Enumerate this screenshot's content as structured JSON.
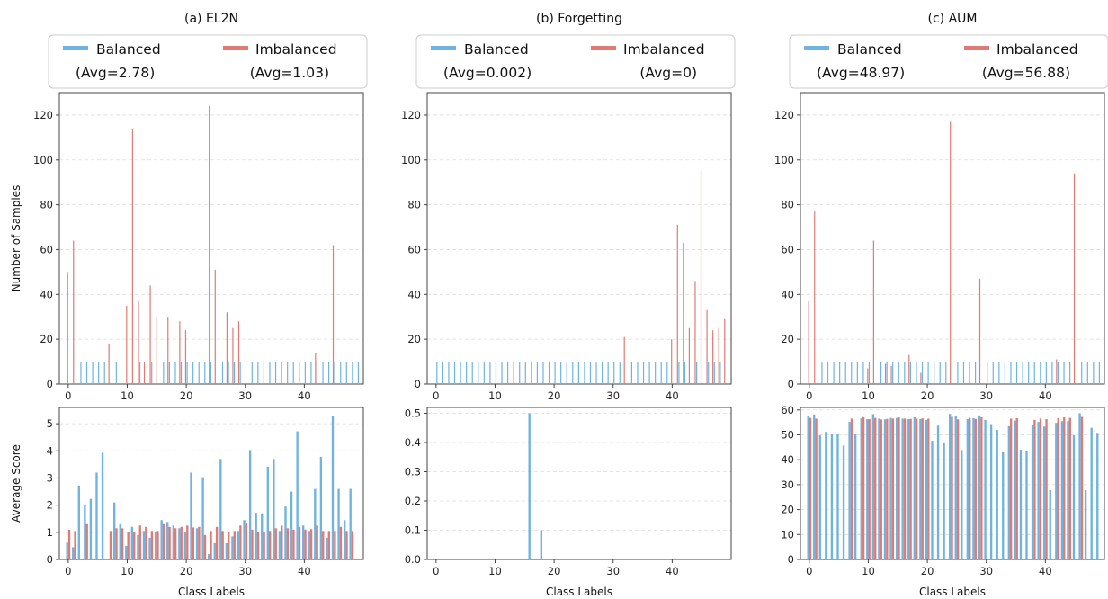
{
  "colors": {
    "balanced": "#6fb3e0",
    "imbalanced": "#e07b74",
    "grid": "#dddddd",
    "axis": "#444444"
  },
  "legend_labels": {
    "balanced": "Balanced",
    "imbalanced": "Imbalanced"
  },
  "axis_labels": {
    "top_ylabel": "Number of Samples",
    "bottom_ylabel": "Average Score",
    "xlabel": "Class Labels"
  },
  "chart_data": [
    {
      "type": "bar",
      "title": "(a) EL2N",
      "legend": {
        "balanced_avg": "(Avg=2.78)",
        "imbalanced_avg": "(Avg=1.03)"
      },
      "count_hist": {
        "ylim": [
          0,
          130
        ],
        "yticks": [
          0,
          20,
          40,
          60,
          80,
          100,
          120
        ],
        "xticks": [
          0,
          10,
          20,
          30,
          40
        ],
        "xlim": [
          -1.5,
          50
        ],
        "balanced": {
          "classes": [
            2,
            3,
            4,
            5,
            6,
            8,
            12,
            14,
            16,
            17,
            18,
            19,
            20,
            21,
            22,
            23,
            24,
            26,
            27,
            28,
            29,
            31,
            32,
            33,
            34,
            35,
            36,
            37,
            38,
            39,
            40,
            41,
            42,
            43,
            44,
            45,
            46,
            47,
            48,
            49
          ],
          "values": [
            10,
            10,
            10,
            10,
            10,
            10,
            10,
            10,
            10,
            10,
            10,
            10,
            10,
            10,
            10,
            10,
            10,
            10,
            10,
            10,
            10,
            10,
            10,
            10,
            10,
            10,
            10,
            10,
            10,
            10,
            10,
            10,
            10,
            10,
            10,
            10,
            10,
            10,
            10,
            10
          ]
        },
        "imbalanced": {
          "classes": [
            0,
            1,
            7,
            10,
            11,
            12,
            13,
            14,
            15,
            17,
            19,
            20,
            24,
            25,
            27,
            28,
            29,
            42,
            45
          ],
          "values": [
            50,
            64,
            18,
            35,
            114,
            37,
            10,
            44,
            30,
            30,
            28,
            24,
            124,
            51,
            32,
            25,
            28,
            14,
            62
          ]
        }
      },
      "score_bars": {
        "ylim": [
          0,
          5.6
        ],
        "yticks": [
          0,
          1,
          2,
          3,
          4,
          5
        ],
        "xticks": [
          0,
          10,
          20,
          30,
          40
        ],
        "xlim": [
          -1.5,
          50
        ],
        "balanced": [
          0.62,
          0.45,
          2.72,
          2.0,
          2.23,
          3.2,
          3.93,
          null,
          2.1,
          1.3,
          0.5,
          1.2,
          0.9,
          1.05,
          0.8,
          1.0,
          1.45,
          1.38,
          1.25,
          1.15,
          1.0,
          3.2,
          1.15,
          3.03,
          0.2,
          0.6,
          3.7,
          0.6,
          0.85,
          1.05,
          1.45,
          4.03,
          1.72,
          1.7,
          3.42,
          3.7,
          1.05,
          1.95,
          2.5,
          4.72,
          1.25,
          1.05,
          2.6,
          3.78,
          0.8,
          5.3,
          2.6,
          1.45,
          2.6,
          null
        ],
        "imbalanced": [
          1.1,
          1.05,
          null,
          1.3,
          null,
          null,
          null,
          1.05,
          1.15,
          1.15,
          1.0,
          1.0,
          1.25,
          1.2,
          1.05,
          1.05,
          1.3,
          1.2,
          1.15,
          1.2,
          1.25,
          1.18,
          1.2,
          0.9,
          1.05,
          1.2,
          1.05,
          1.0,
          1.05,
          1.25,
          1.35,
          1.1,
          1.0,
          1.0,
          1.05,
          1.15,
          1.25,
          1.15,
          1.1,
          1.2,
          1.1,
          1.12,
          1.25,
          1.05,
          1.05,
          1.05,
          1.2,
          1.05,
          1.05,
          null
        ]
      }
    },
    {
      "type": "bar",
      "title": "(b) Forgetting",
      "legend": {
        "balanced_avg": "(Avg=0.002)",
        "imbalanced_avg": "(Avg=0)"
      },
      "count_hist": {
        "ylim": [
          0,
          130
        ],
        "yticks": [
          0,
          20,
          40,
          60,
          80,
          100,
          120
        ],
        "xticks": [
          0,
          10,
          20,
          30,
          40
        ],
        "xlim": [
          -1.5,
          50
        ],
        "balanced": {
          "classes": [
            0,
            1,
            2,
            3,
            4,
            5,
            6,
            7,
            8,
            9,
            10,
            11,
            12,
            13,
            14,
            15,
            16,
            17,
            18,
            19,
            20,
            21,
            22,
            23,
            24,
            25,
            26,
            27,
            28,
            29,
            30,
            31,
            33,
            34,
            35,
            36,
            37,
            38,
            39,
            41,
            42,
            44,
            46,
            47,
            48
          ],
          "values": [
            10,
            10,
            10,
            10,
            10,
            10,
            10,
            10,
            10,
            10,
            10,
            10,
            10,
            10,
            10,
            10,
            10,
            10,
            10,
            10,
            10,
            10,
            10,
            10,
            10,
            10,
            10,
            10,
            10,
            10,
            10,
            10,
            10,
            10,
            10,
            10,
            10,
            10,
            10,
            10,
            10,
            10,
            10,
            10,
            10
          ]
        },
        "imbalanced": {
          "classes": [
            32,
            40,
            41,
            42,
            43,
            44,
            45,
            46,
            47,
            48,
            49
          ],
          "values": [
            21,
            20,
            71,
            63,
            25,
            46,
            95,
            33,
            24,
            25,
            29
          ]
        }
      },
      "score_bars": {
        "ylim": [
          0,
          0.52
        ],
        "yticks": [
          0.0,
          0.1,
          0.2,
          0.3,
          0.4,
          0.5
        ],
        "ytick_labels": [
          "0.0",
          "0.1",
          "0.2",
          "0.3",
          "0.4",
          "0.5"
        ],
        "xticks": [
          0,
          10,
          20,
          30,
          40
        ],
        "xlim": [
          -1.5,
          50
        ],
        "balanced": [
          null,
          null,
          null,
          null,
          null,
          null,
          null,
          null,
          null,
          null,
          null,
          null,
          null,
          null,
          null,
          null,
          0.5,
          null,
          0.1,
          null,
          null,
          null,
          null,
          null,
          null,
          null,
          null,
          null,
          null,
          null,
          null,
          null,
          null,
          null,
          null,
          null,
          null,
          null,
          null,
          null,
          null,
          null,
          null,
          null,
          null,
          null,
          null,
          null,
          null,
          null
        ],
        "imbalanced": []
      }
    },
    {
      "type": "bar",
      "title": "(c) AUM",
      "legend": {
        "balanced_avg": "(Avg=48.97)",
        "imbalanced_avg": "(Avg=56.88)"
      },
      "count_hist": {
        "ylim": [
          0,
          130
        ],
        "yticks": [
          0,
          20,
          40,
          60,
          80,
          100,
          120
        ],
        "xticks": [
          0,
          10,
          20,
          30,
          40
        ],
        "xlim": [
          -1.5,
          50
        ],
        "balanced": {
          "classes": [
            2,
            3,
            4,
            5,
            6,
            7,
            8,
            9,
            10,
            12,
            13,
            14,
            15,
            16,
            17,
            18,
            19,
            20,
            21,
            22,
            23,
            25,
            26,
            27,
            28,
            30,
            31,
            32,
            33,
            34,
            35,
            36,
            37,
            38,
            39,
            40,
            41,
            42,
            43,
            44,
            46,
            47,
            48,
            49
          ],
          "values": [
            10,
            10,
            10,
            10,
            10,
            10,
            10,
            10,
            10,
            10,
            10,
            10,
            10,
            10,
            10,
            10,
            10,
            10,
            10,
            10,
            10,
            10,
            10,
            10,
            10,
            10,
            10,
            10,
            10,
            10,
            10,
            10,
            10,
            10,
            10,
            10,
            10,
            10,
            10,
            10,
            10,
            10,
            10,
            10
          ]
        },
        "imbalanced": {
          "classes": [
            0,
            1,
            10,
            11,
            13,
            14,
            17,
            19,
            24,
            29,
            42,
            45
          ],
          "values": [
            37,
            77,
            7,
            64,
            9,
            8,
            13,
            5,
            117,
            47,
            11,
            94
          ]
        }
      },
      "score_bars": {
        "ylim": [
          0,
          61
        ],
        "yticks": [
          0,
          10,
          20,
          30,
          40,
          50,
          60
        ],
        "xticks": [
          0,
          10,
          20,
          30,
          40
        ],
        "xlim": [
          -1.5,
          50
        ],
        "balanced": [
          57.6,
          58.2,
          49.8,
          51.2,
          50.3,
          50.2,
          45.7,
          55.2,
          50.5,
          56.6,
          56.3,
          58.3,
          56.5,
          56.2,
          56.8,
          56.8,
          56.5,
          56.3,
          57.0,
          56.3,
          56.0,
          47.6,
          53.7,
          47.0,
          58.4,
          57.5,
          43.9,
          56.3,
          56.7,
          57.8,
          56.0,
          54.3,
          52.0,
          43.0,
          53.5,
          55.7,
          44.0,
          43.5,
          53.8,
          55.2,
          53.3,
          27.8,
          54.8,
          55.5,
          55.5,
          49.8,
          58.7,
          27.8,
          52.8,
          50.8
        ],
        "imbalanced": [
          56.8,
          56.5,
          null,
          null,
          null,
          null,
          null,
          56.5,
          null,
          57.1,
          56.3,
          56.8,
          56.2,
          56.4,
          56.5,
          57.0,
          56.5,
          56.4,
          56.5,
          56.6,
          56.5,
          null,
          null,
          null,
          57.2,
          56.2,
          null,
          56.8,
          56.4,
          57.0,
          null,
          null,
          null,
          null,
          56.5,
          56.7,
          null,
          null,
          56.0,
          56.5,
          56.3,
          null,
          56.7,
          57.0,
          56.8,
          null,
          57.2,
          null,
          null,
          null
        ]
      }
    }
  ]
}
